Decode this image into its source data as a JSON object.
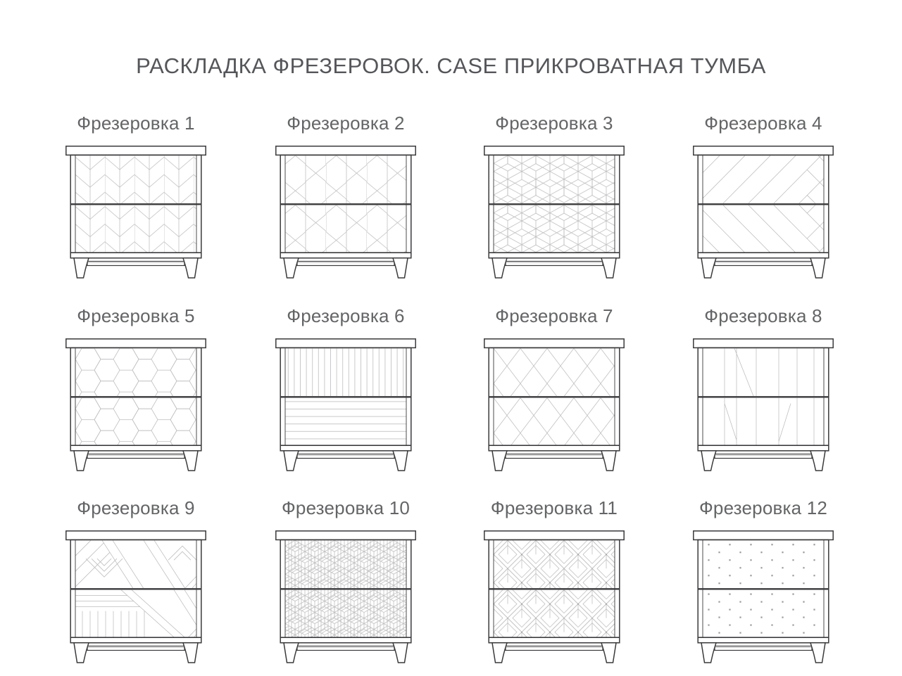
{
  "page_title": "РАСКЛАДКА ФРЕЗЕРОВОК. CASE ПРИКРОВАТНАЯ ТУМБА",
  "product": "CASE прикроватная тумба",
  "colors": {
    "structure_line": "#3a3a3c",
    "pattern_line": "#bcbcbe",
    "dot": "#98989a",
    "title_text": "#55565a",
    "label_text": "#646567",
    "background": "#ffffff"
  },
  "cards": [
    {
      "label": "Фрезеровка 1",
      "pattern": "chevron-columns"
    },
    {
      "label": "Фрезеровка 2",
      "pattern": "elongated-hexagons"
    },
    {
      "label": "Фрезеровка 3",
      "pattern": "isometric-cubes"
    },
    {
      "label": "Фрезеровка 4",
      "pattern": "wide-chevron"
    },
    {
      "label": "Фрезеровка 5",
      "pattern": "honeycomb-hexagons"
    },
    {
      "label": "Фрезеровка 6",
      "pattern": "vertical-horizontal-lines"
    },
    {
      "label": "Фрезеровка 7",
      "pattern": "diamond-lattice"
    },
    {
      "label": "Фрезеровка 8",
      "pattern": "sparse-sticks"
    },
    {
      "label": "Фрезеровка 9",
      "pattern": "patchwork-diagonal"
    },
    {
      "label": "Фрезеровка 10",
      "pattern": "parquet-cubes"
    },
    {
      "label": "Фрезеровка 11",
      "pattern": "nested-diamonds"
    },
    {
      "label": "Фрезеровка 12",
      "pattern": "dot-grid"
    }
  ]
}
